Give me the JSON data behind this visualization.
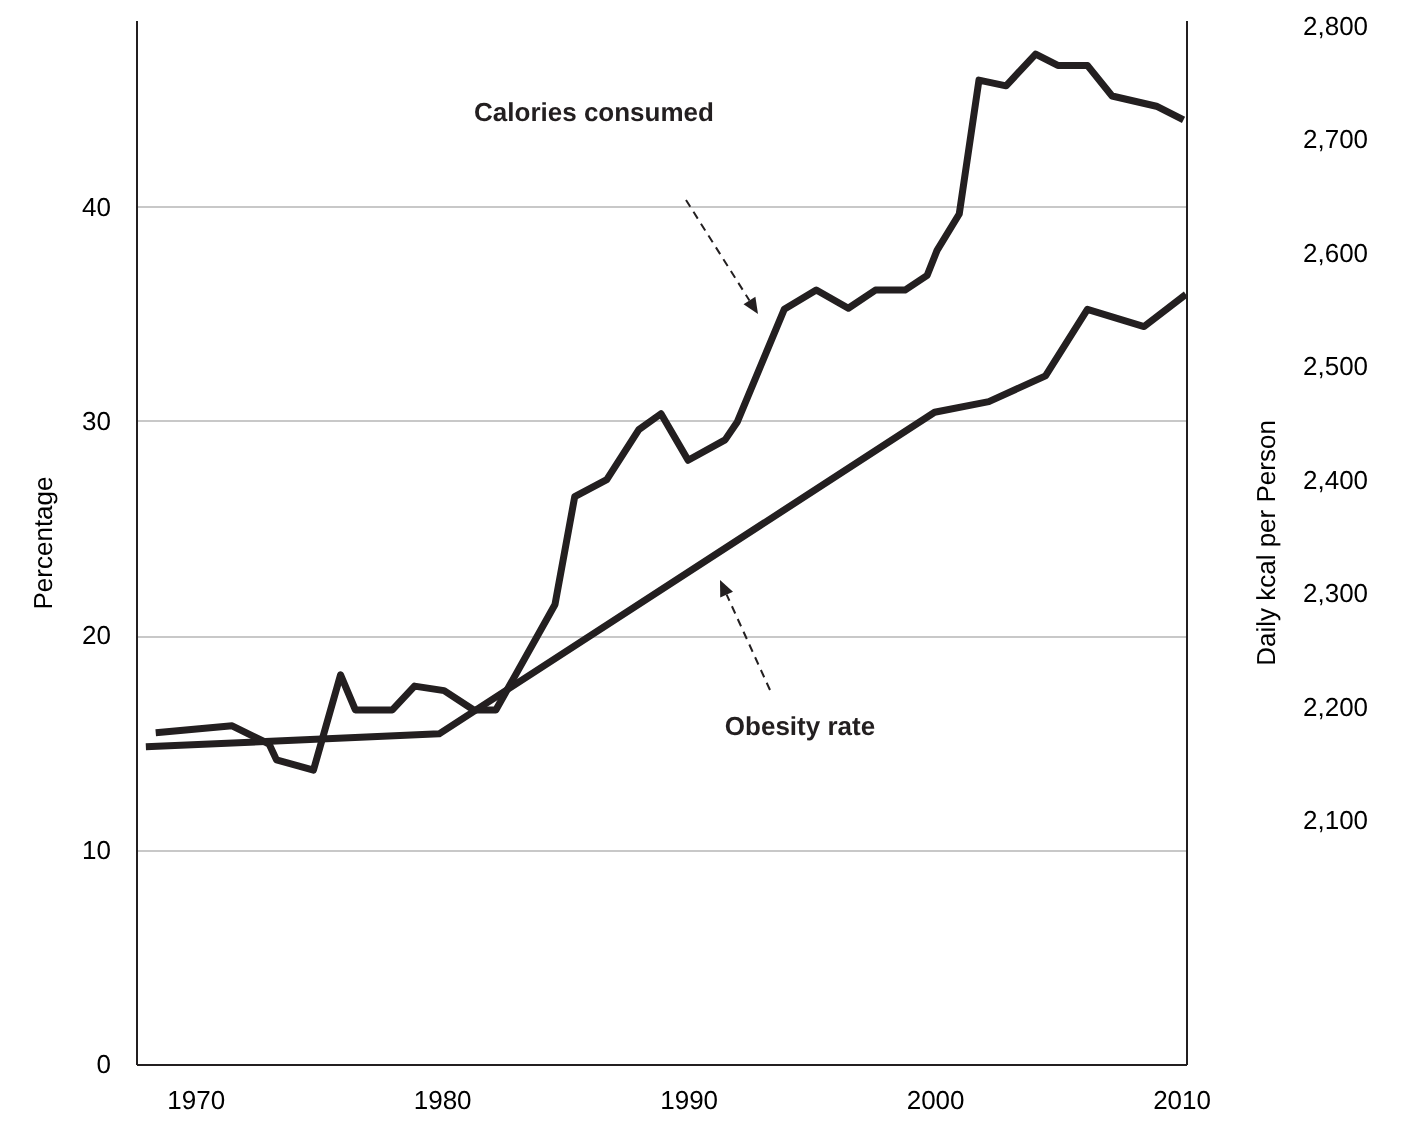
{
  "chart_data": {
    "type": "line",
    "ylabel": "Percentage",
    "y2label": "Daily kcal per Person",
    "xlim": [
      1967.6,
      2010.2
    ],
    "xticks": [
      1970,
      1980,
      1990,
      2000,
      2010
    ],
    "ylim": [
      0,
      48.7
    ],
    "yticks": [
      0,
      10,
      20,
      30,
      40
    ],
    "y2lim": [
      1885,
      2805
    ],
    "y2ticks": [
      {
        "value": 2100,
        "label": "2,100"
      },
      {
        "value": 2200,
        "label": "2,200"
      },
      {
        "value": 2300,
        "label": "2,300"
      },
      {
        "value": 2400,
        "label": "2,400"
      },
      {
        "value": 2500,
        "label": "2,500"
      },
      {
        "value": 2600,
        "label": "2,600"
      },
      {
        "value": 2700,
        "label": "2,700"
      },
      {
        "value": 2800,
        "label": "2,800"
      }
    ],
    "grid": "y",
    "marker": "none",
    "line_style": "solid",
    "series": [
      {
        "color": "#231f20",
        "axis": "y2",
        "x": [
          1968.4,
          1971.5,
          1973.0,
          1973.3,
          1974.8,
          1975.9,
          1976.5,
          1978.0,
          1978.9,
          1980.1,
          1981.3,
          1982.2,
          1984.6,
          1985.4,
          1986.7,
          1988.0,
          1988.9,
          1990.0,
          1991.5,
          1992.0,
          1993.9,
          1995.2,
          1996.5,
          1997.6,
          1998.8,
          1999.7,
          2000.1,
          2001.0,
          2001.8,
          2002.9,
          2004.1,
          2005.0,
          2006.2,
          2007.2,
          2009.0,
          2010.1
        ],
        "values": [
          2177,
          2183,
          2167,
          2153,
          2144,
          2228,
          2197,
          2197,
          2218,
          2214,
          2197,
          2197,
          2290,
          2385,
          2400,
          2444,
          2458,
          2417,
          2435,
          2451,
          2550,
          2567,
          2551,
          2567,
          2567,
          2580,
          2602,
          2634,
          2752,
          2747,
          2775,
          2765,
          2765,
          2738,
          2729,
          2717
        ]
      },
      {
        "color": "#231f20",
        "x": [
          1968.0,
          1979.9,
          2000.0,
          2002.2,
          2004.5,
          2006.2,
          2008.5,
          2010.2
        ],
        "values": [
          14.8,
          15.4,
          30.4,
          30.9,
          32.1,
          35.2,
          34.4,
          35.9
        ]
      }
    ],
    "annotations": [
      "Calories consumed",
      "Obesity rate"
    ]
  }
}
